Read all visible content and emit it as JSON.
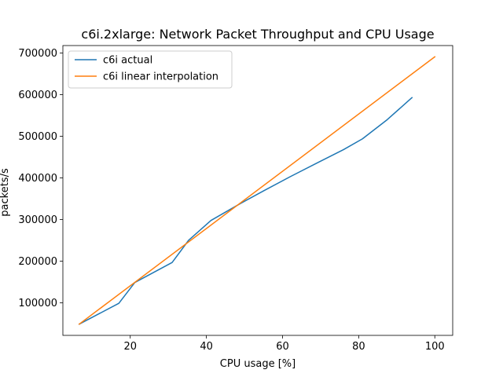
{
  "chart_data": {
    "type": "line",
    "title": "c6i.2xlarge: Network Packet Throughput and CPU Usage",
    "xlabel": "CPU usage [%]",
    "ylabel": "packets/s",
    "xlim": [
      2.3,
      104.7
    ],
    "ylim": [
      22000,
      718000
    ],
    "xticks": [
      20,
      40,
      60,
      80,
      100
    ],
    "yticks": [
      100000,
      200000,
      300000,
      400000,
      500000,
      600000,
      700000
    ],
    "grid": false,
    "legend_position": "top-left",
    "series": [
      {
        "name": "c6i actual",
        "color": "#1f77b4",
        "x": [
          6.6,
          17.0,
          21.2,
          31.0,
          35.3,
          41.2,
          49.0,
          55.0,
          62.0,
          69.5,
          76.0,
          81.0,
          87.5,
          94.0
        ],
        "y": [
          49000,
          99000,
          149000,
          197000,
          250000,
          298000,
          339000,
          369000,
          403000,
          438000,
          468000,
          494000,
          540000,
          593000
        ]
      },
      {
        "name": "c6i linear interpolation",
        "color": "#ff7f0e",
        "x": [
          6.6,
          100.0
        ],
        "y": [
          49000,
          691000
        ]
      }
    ]
  }
}
